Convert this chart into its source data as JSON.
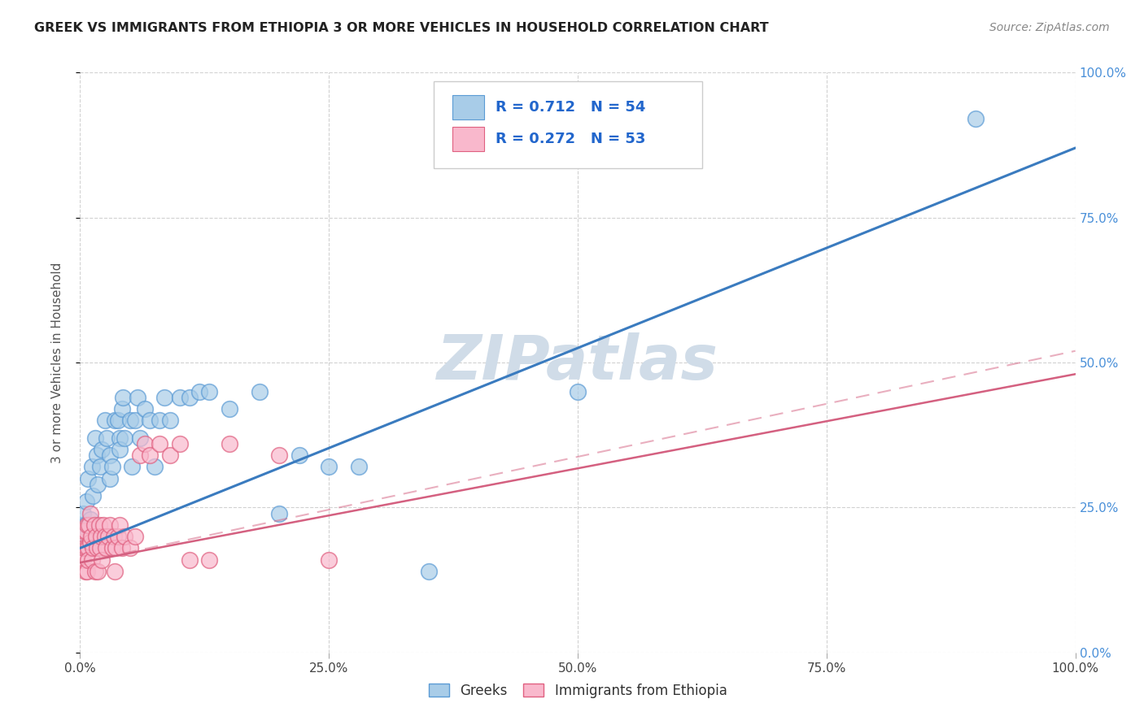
{
  "title": "GREEK VS IMMIGRANTS FROM ETHIOPIA 3 OR MORE VEHICLES IN HOUSEHOLD CORRELATION CHART",
  "source": "Source: ZipAtlas.com",
  "ylabel": "3 or more Vehicles in Household",
  "xmin": 0.0,
  "xmax": 1.0,
  "ymin": 0.0,
  "ymax": 1.0,
  "greek_r": "0.712",
  "greek_n": "54",
  "ethiopia_r": "0.272",
  "ethiopia_n": "53",
  "greek_color": "#a8cce8",
  "greek_edge_color": "#5b9bd5",
  "ethiopia_color": "#f9b8cc",
  "ethiopia_edge_color": "#e06080",
  "greek_line_color": "#3a7bbf",
  "ethiopia_line_color": "#d46080",
  "watermark_color": "#d0dce8",
  "legend_label_greek": "Greeks",
  "legend_label_ethiopia": "Immigrants from Ethiopia",
  "greek_points": [
    [
      0.002,
      0.22
    ],
    [
      0.003,
      0.2
    ],
    [
      0.003,
      0.24
    ],
    [
      0.004,
      0.18
    ],
    [
      0.005,
      0.22
    ],
    [
      0.006,
      0.26
    ],
    [
      0.006,
      0.2
    ],
    [
      0.008,
      0.21
    ],
    [
      0.008,
      0.3
    ],
    [
      0.01,
      0.19
    ],
    [
      0.01,
      0.23
    ],
    [
      0.012,
      0.32
    ],
    [
      0.013,
      0.27
    ],
    [
      0.015,
      0.37
    ],
    [
      0.017,
      0.34
    ],
    [
      0.018,
      0.29
    ],
    [
      0.02,
      0.32
    ],
    [
      0.022,
      0.35
    ],
    [
      0.025,
      0.4
    ],
    [
      0.027,
      0.37
    ],
    [
      0.03,
      0.34
    ],
    [
      0.03,
      0.3
    ],
    [
      0.032,
      0.32
    ],
    [
      0.035,
      0.4
    ],
    [
      0.038,
      0.4
    ],
    [
      0.04,
      0.37
    ],
    [
      0.04,
      0.35
    ],
    [
      0.042,
      0.42
    ],
    [
      0.043,
      0.44
    ],
    [
      0.045,
      0.37
    ],
    [
      0.05,
      0.4
    ],
    [
      0.052,
      0.32
    ],
    [
      0.055,
      0.4
    ],
    [
      0.058,
      0.44
    ],
    [
      0.06,
      0.37
    ],
    [
      0.065,
      0.42
    ],
    [
      0.07,
      0.4
    ],
    [
      0.075,
      0.32
    ],
    [
      0.08,
      0.4
    ],
    [
      0.085,
      0.44
    ],
    [
      0.09,
      0.4
    ],
    [
      0.1,
      0.44
    ],
    [
      0.11,
      0.44
    ],
    [
      0.12,
      0.45
    ],
    [
      0.13,
      0.45
    ],
    [
      0.15,
      0.42
    ],
    [
      0.18,
      0.45
    ],
    [
      0.2,
      0.24
    ],
    [
      0.22,
      0.34
    ],
    [
      0.25,
      0.32
    ],
    [
      0.28,
      0.32
    ],
    [
      0.35,
      0.14
    ],
    [
      0.5,
      0.45
    ],
    [
      0.9,
      0.92
    ]
  ],
  "ethiopia_points": [
    [
      0.001,
      0.16
    ],
    [
      0.002,
      0.19
    ],
    [
      0.003,
      0.16
    ],
    [
      0.003,
      0.21
    ],
    [
      0.004,
      0.18
    ],
    [
      0.005,
      0.21
    ],
    [
      0.005,
      0.14
    ],
    [
      0.006,
      0.18
    ],
    [
      0.007,
      0.14
    ],
    [
      0.007,
      0.22
    ],
    [
      0.008,
      0.18
    ],
    [
      0.008,
      0.16
    ],
    [
      0.009,
      0.22
    ],
    [
      0.01,
      0.24
    ],
    [
      0.01,
      0.19
    ],
    [
      0.011,
      0.2
    ],
    [
      0.012,
      0.16
    ],
    [
      0.013,
      0.18
    ],
    [
      0.014,
      0.22
    ],
    [
      0.015,
      0.14
    ],
    [
      0.016,
      0.2
    ],
    [
      0.017,
      0.18
    ],
    [
      0.018,
      0.14
    ],
    [
      0.019,
      0.22
    ],
    [
      0.02,
      0.18
    ],
    [
      0.021,
      0.2
    ],
    [
      0.022,
      0.16
    ],
    [
      0.023,
      0.22
    ],
    [
      0.025,
      0.2
    ],
    [
      0.026,
      0.18
    ],
    [
      0.028,
      0.2
    ],
    [
      0.03,
      0.22
    ],
    [
      0.032,
      0.18
    ],
    [
      0.034,
      0.2
    ],
    [
      0.035,
      0.14
    ],
    [
      0.036,
      0.18
    ],
    [
      0.038,
      0.2
    ],
    [
      0.04,
      0.22
    ],
    [
      0.042,
      0.18
    ],
    [
      0.045,
      0.2
    ],
    [
      0.05,
      0.18
    ],
    [
      0.055,
      0.2
    ],
    [
      0.06,
      0.34
    ],
    [
      0.065,
      0.36
    ],
    [
      0.07,
      0.34
    ],
    [
      0.08,
      0.36
    ],
    [
      0.09,
      0.34
    ],
    [
      0.1,
      0.36
    ],
    [
      0.11,
      0.16
    ],
    [
      0.13,
      0.16
    ],
    [
      0.15,
      0.36
    ],
    [
      0.2,
      0.34
    ],
    [
      0.25,
      0.16
    ]
  ],
  "greek_line": [
    [
      0.0,
      0.18
    ],
    [
      1.0,
      0.87
    ]
  ],
  "ethiopia_line": [
    [
      0.0,
      0.155
    ],
    [
      1.0,
      0.48
    ]
  ],
  "ethiopia_dashed_line": [
    [
      0.0,
      0.155
    ],
    [
      1.0,
      0.52
    ]
  ],
  "ytick_vals": [
    0.0,
    0.25,
    0.5,
    0.75,
    1.0
  ],
  "ytick_labels_right": [
    "0.0%",
    "25.0%",
    "50.0%",
    "75.0%",
    "100.0%"
  ],
  "xtick_vals": [
    0.0,
    0.25,
    0.5,
    0.75,
    1.0
  ],
  "xtick_labels": [
    "0.0%",
    "25.0%",
    "50.0%",
    "75.0%",
    "100.0%"
  ]
}
